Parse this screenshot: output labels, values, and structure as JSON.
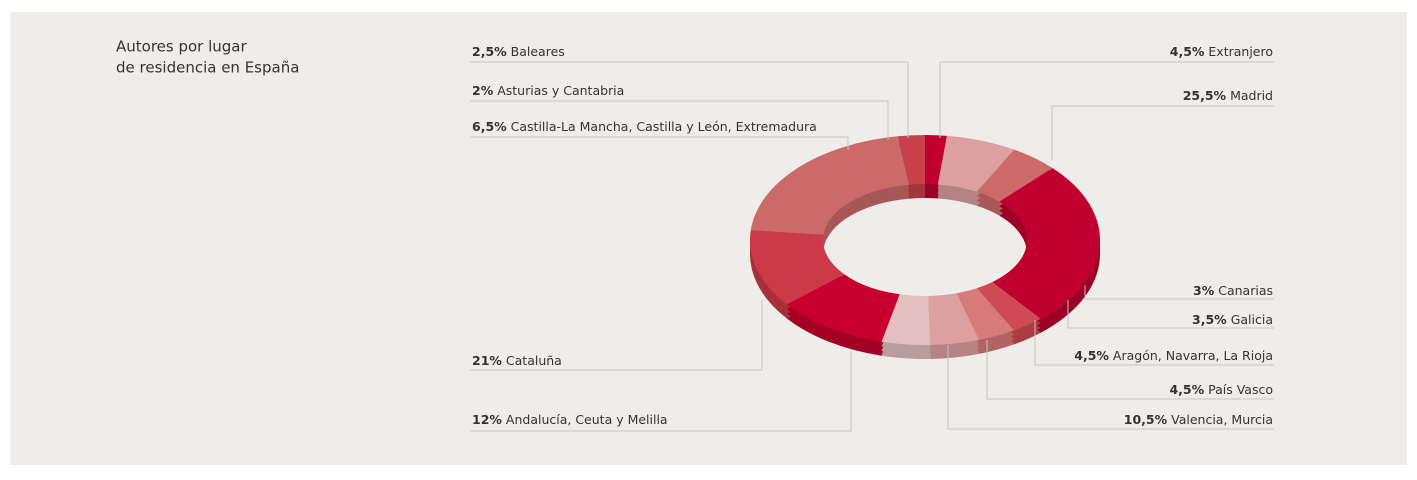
{
  "chart_data": {
    "type": "donut",
    "title": [
      "Autores por lugar",
      "de residencia en España"
    ],
    "categories": [
      "Baleares",
      "Asturias y Cantabria",
      "Castilla-La Mancha, Castilla y León, Extremadura",
      "Extranjero",
      "Madrid",
      "Canarias",
      "Galicia",
      "Aragón, Navarra, La Rioja",
      "País Vasco",
      "Valencia, Murcia",
      "Andalucía, Ceuta y Melilla",
      "Cataluña"
    ],
    "values": [
      2.5,
      2,
      6.5,
      4.5,
      25.5,
      3,
      3.5,
      4.5,
      4.5,
      10.5,
      12,
      21
    ],
    "value_labels": [
      "2,5%",
      "2%",
      "6,5%",
      "4,5%",
      "25,5%",
      "3%",
      "3,5%",
      "4,5%",
      "4,5%",
      "10,5%",
      "12%",
      "21%"
    ],
    "colors": [
      "#c8404a",
      "#c0002e",
      "#dda0a0",
      "#cf6a6a",
      "#c0002e",
      "#cf4a52",
      "#d97a7a",
      "#dca0a0",
      "#e2c0c0",
      "#c8002e",
      "#cc3a48",
      "#cc6a6a"
    ]
  }
}
